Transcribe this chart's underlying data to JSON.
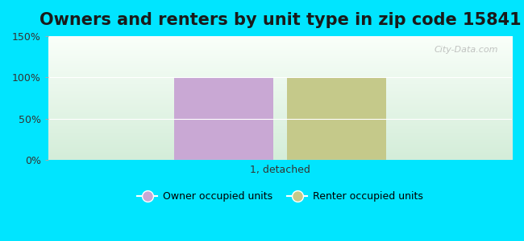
{
  "title": "Owners and renters by unit type in zip code 15841",
  "categories": [
    "1, detached"
  ],
  "owner_values": [
    100
  ],
  "renter_values": [
    100
  ],
  "owner_color": "#c9a8d4",
  "renter_color": "#c5c98a",
  "ylim": [
    0,
    150
  ],
  "yticks": [
    0,
    50,
    100,
    150
  ],
  "ytick_labels": [
    "0%",
    "50%",
    "100%",
    "150%"
  ],
  "background_outer": "#00e5ff",
  "legend_owner": "Owner occupied units",
  "legend_renter": "Renter occupied units",
  "bar_width": 0.3,
  "watermark": "City-Data.com",
  "title_fontsize": 15,
  "label_fontsize": 9,
  "legend_fontsize": 9
}
